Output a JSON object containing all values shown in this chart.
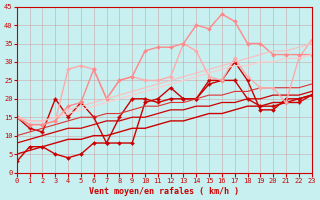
{
  "xlabel": "Vent moyen/en rafales ( km/h )",
  "xlim": [
    0,
    23
  ],
  "ylim": [
    0,
    45
  ],
  "xticks": [
    0,
    1,
    2,
    3,
    4,
    5,
    6,
    7,
    8,
    9,
    10,
    11,
    12,
    13,
    14,
    15,
    16,
    17,
    18,
    19,
    20,
    21,
    22,
    23
  ],
  "yticks": [
    0,
    5,
    10,
    15,
    20,
    25,
    30,
    35,
    40,
    45
  ],
  "background_color": "#c8f0f0",
  "lines": [
    {
      "x": [
        0,
        1,
        2,
        3,
        4,
        5,
        6,
        7,
        8,
        9,
        10,
        11,
        12,
        13,
        14,
        15,
        16,
        17,
        18,
        19,
        20,
        21,
        22,
        23
      ],
      "y": [
        3,
        7,
        7,
        5,
        4,
        5,
        8,
        8,
        8,
        8,
        19,
        20,
        23,
        20,
        20,
        25,
        25,
        30,
        25,
        17,
        17,
        20,
        20,
        21
      ],
      "color": "#cc0000",
      "lw": 1.0,
      "marker": "D",
      "ms": 2.0
    },
    {
      "x": [
        0,
        1,
        2,
        3,
        4,
        5,
        6,
        7,
        8,
        9,
        10,
        11,
        12,
        13,
        14,
        15,
        16,
        17,
        18,
        19,
        20,
        21,
        22,
        23
      ],
      "y": [
        15,
        12,
        11,
        20,
        15,
        19,
        15,
        8,
        15,
        20,
        20,
        19,
        20,
        20,
        20,
        24,
        25,
        25,
        20,
        18,
        18,
        19,
        19,
        21
      ],
      "color": "#cc0000",
      "lw": 1.0,
      "marker": "P",
      "ms": 2.5
    },
    {
      "x": [
        0,
        1,
        2,
        3,
        4,
        5,
        6,
        7,
        8,
        9,
        10,
        11,
        12,
        13,
        14,
        15,
        16,
        17,
        18,
        19,
        20,
        21,
        22,
        23
      ],
      "y": [
        5,
        6,
        7,
        8,
        9,
        9,
        10,
        10,
        11,
        12,
        12,
        13,
        14,
        14,
        15,
        16,
        16,
        17,
        18,
        18,
        19,
        19,
        20,
        21
      ],
      "color": "#cc0000",
      "lw": 1.0,
      "marker": null,
      "ms": 0
    },
    {
      "x": [
        0,
        1,
        2,
        3,
        4,
        5,
        6,
        7,
        8,
        9,
        10,
        11,
        12,
        13,
        14,
        15,
        16,
        17,
        18,
        19,
        20,
        21,
        22,
        23
      ],
      "y": [
        8,
        9,
        10,
        11,
        12,
        12,
        13,
        14,
        14,
        15,
        15,
        16,
        17,
        17,
        18,
        18,
        19,
        19,
        20,
        20,
        21,
        21,
        21,
        22
      ],
      "color": "#cc0000",
      "lw": 0.9,
      "marker": null,
      "ms": 0
    },
    {
      "x": [
        0,
        1,
        2,
        3,
        4,
        5,
        6,
        7,
        8,
        9,
        10,
        11,
        12,
        13,
        14,
        15,
        16,
        17,
        18,
        19,
        20,
        21,
        22,
        23
      ],
      "y": [
        10,
        11,
        12,
        13,
        14,
        15,
        15,
        16,
        16,
        17,
        18,
        18,
        19,
        19,
        20,
        21,
        21,
        22,
        22,
        23,
        23,
        23,
        23,
        24
      ],
      "color": "#dd3333",
      "lw": 0.8,
      "marker": null,
      "ms": 0
    },
    {
      "x": [
        0,
        1,
        2,
        3,
        4,
        5,
        6,
        7,
        8,
        9,
        10,
        11,
        12,
        13,
        14,
        15,
        16,
        17,
        18,
        19,
        20,
        21,
        22,
        23
      ],
      "y": [
        15,
        13,
        13,
        14,
        28,
        29,
        28,
        20,
        25,
        26,
        25,
        25,
        26,
        35,
        33,
        26,
        25,
        31,
        26,
        23,
        23,
        19,
        31,
        36
      ],
      "color": "#ffaaaa",
      "lw": 1.0,
      "marker": "D",
      "ms": 2.0
    },
    {
      "x": [
        0,
        1,
        2,
        3,
        4,
        5,
        6,
        7,
        8,
        9,
        10,
        11,
        12,
        13,
        14,
        15,
        16,
        17,
        18,
        19,
        20,
        21,
        22,
        23
      ],
      "y": [
        15,
        13,
        13,
        14,
        18,
        19,
        28,
        20,
        25,
        26,
        33,
        34,
        34,
        35,
        40,
        39,
        43,
        41,
        35,
        35,
        32,
        32,
        32,
        32
      ],
      "color": "#ff8888",
      "lw": 1.0,
      "marker": "D",
      "ms": 2.0
    },
    {
      "x": [
        0,
        1,
        2,
        3,
        4,
        5,
        6,
        7,
        8,
        9,
        10,
        11,
        12,
        13,
        14,
        15,
        16,
        17,
        18,
        19,
        20,
        21,
        22,
        23
      ],
      "y": [
        15,
        14,
        14,
        15,
        16,
        17,
        18,
        19,
        20,
        21,
        22,
        23,
        24,
        25,
        26,
        27,
        28,
        29,
        29,
        30,
        30,
        31,
        31,
        32
      ],
      "color": "#ffcccc",
      "lw": 0.9,
      "marker": null,
      "ms": 0
    },
    {
      "x": [
        0,
        1,
        2,
        3,
        4,
        5,
        6,
        7,
        8,
        9,
        10,
        11,
        12,
        13,
        14,
        15,
        16,
        17,
        18,
        19,
        20,
        21,
        22,
        23
      ],
      "y": [
        15,
        14,
        14,
        15,
        17,
        18,
        19,
        20,
        21,
        22,
        23,
        24,
        25,
        26,
        27,
        28,
        29,
        30,
        31,
        32,
        33,
        33,
        34,
        35
      ],
      "color": "#ffbbbb",
      "lw": 0.8,
      "marker": null,
      "ms": 0
    }
  ]
}
